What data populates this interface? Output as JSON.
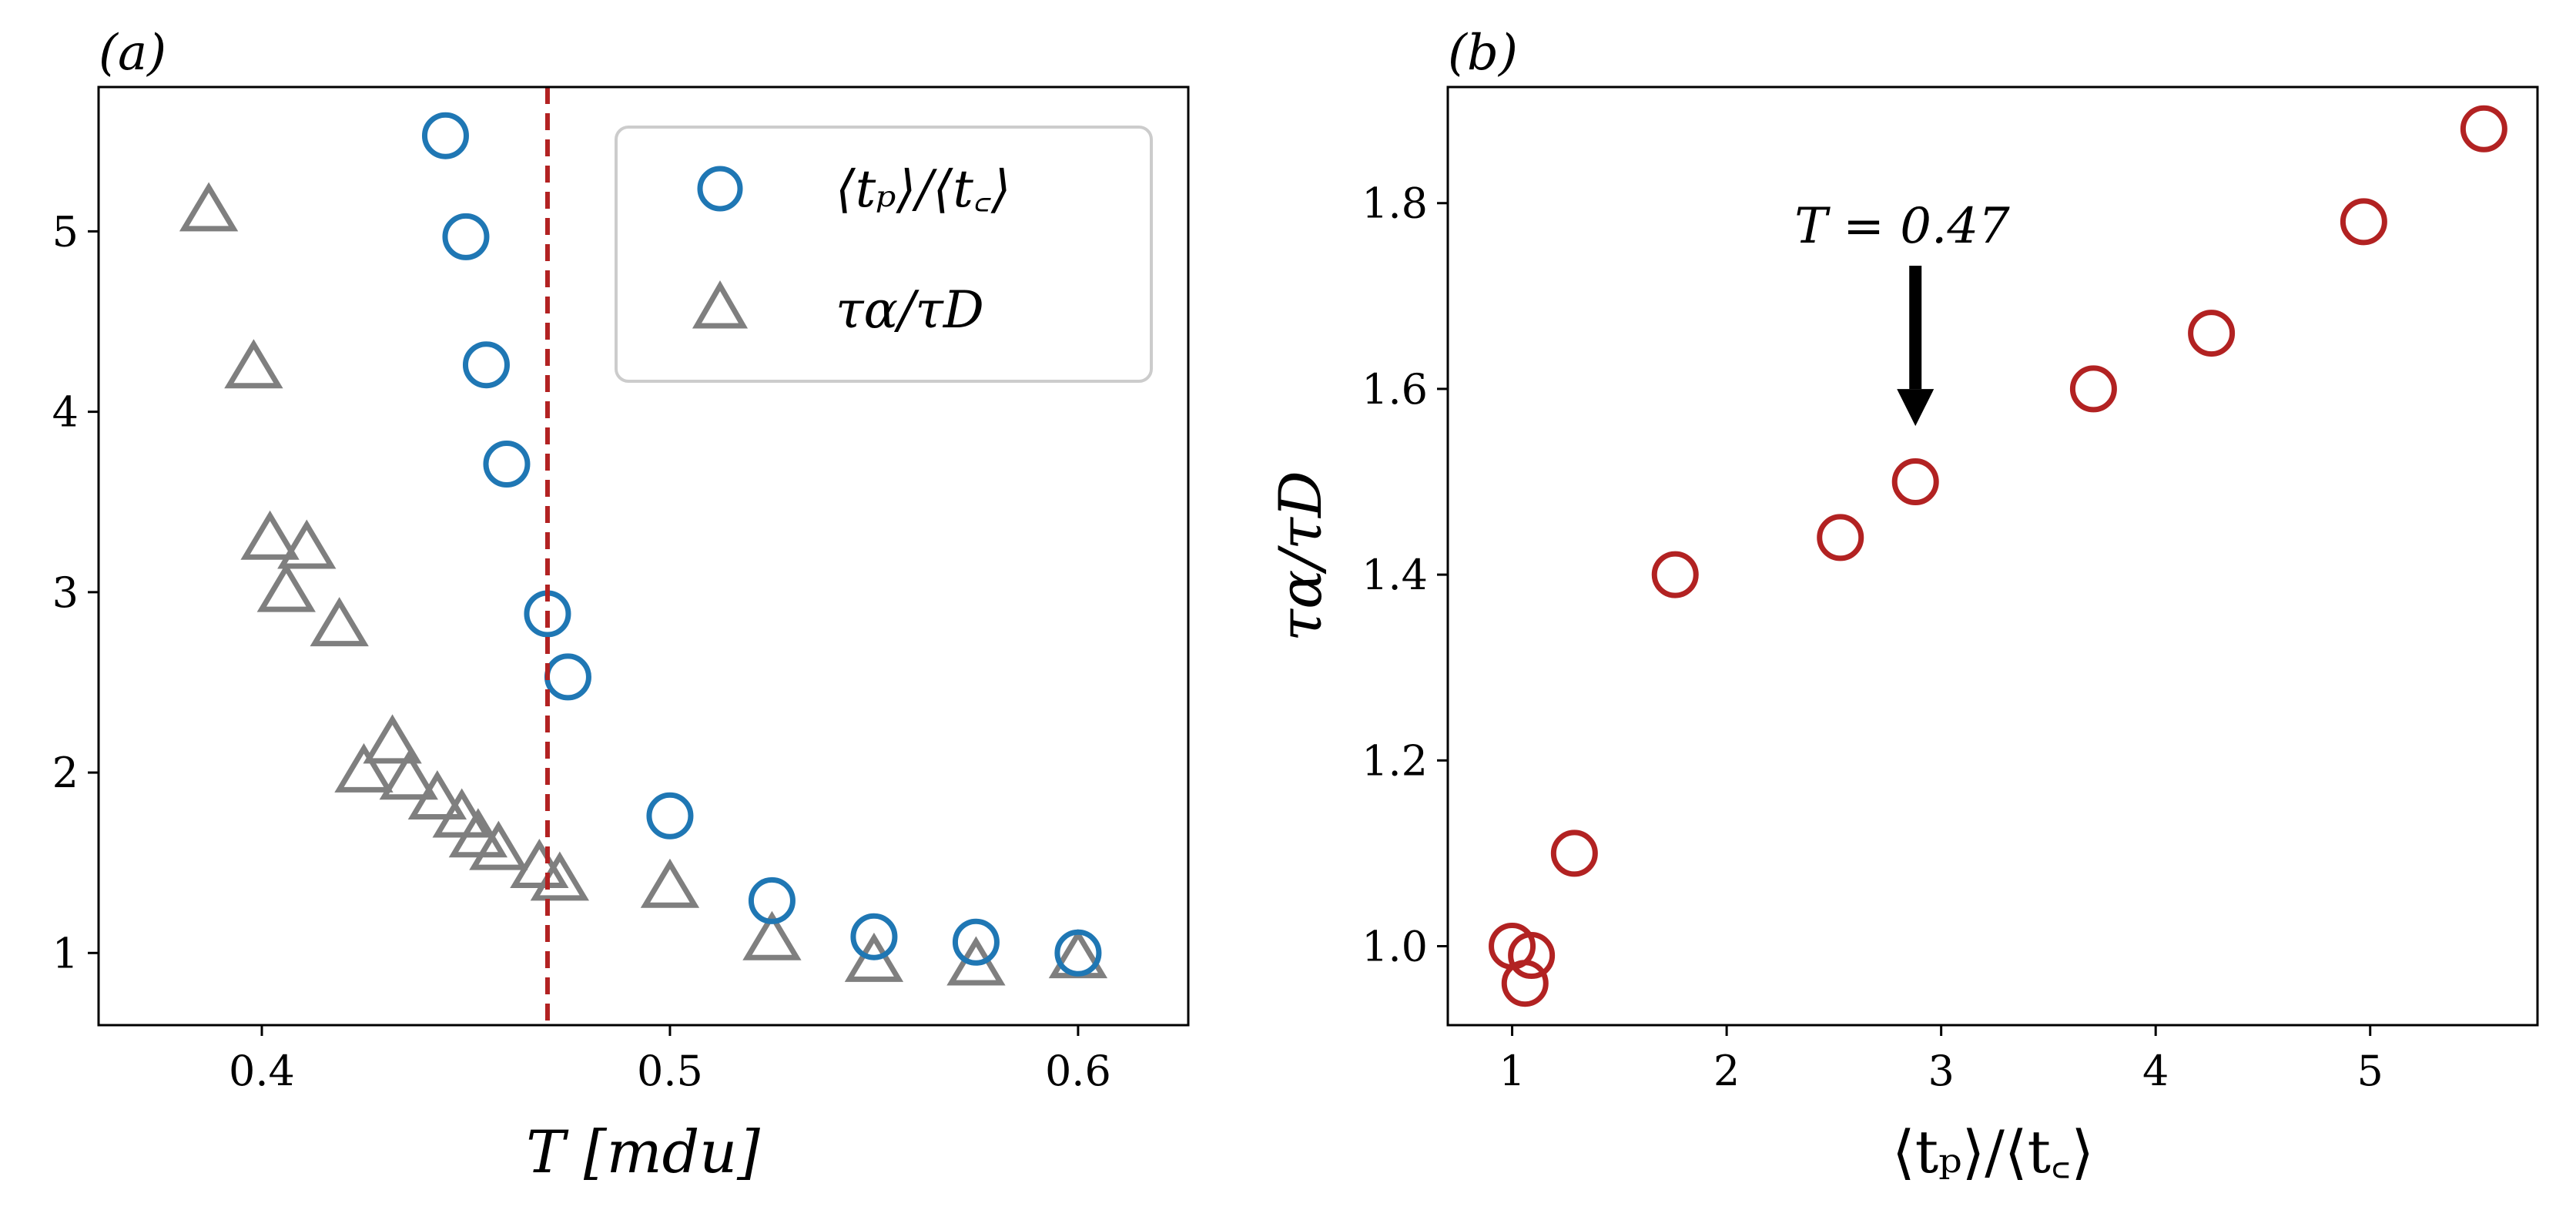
{
  "colors": {
    "blue": "#1f77b4",
    "gray": "#7f7f7f",
    "darkred": "#b22222",
    "vline": "#b22222",
    "axis": "#000000",
    "legend_border": "#cccccc"
  },
  "chart_data": [
    {
      "panel": "(a)",
      "type": "scatter",
      "xlabel": "T  [mdu]",
      "ylabel": "",
      "xlim": [
        0.36,
        0.627
      ],
      "ylim": [
        0.6,
        5.8
      ],
      "xticks": [
        0.4,
        0.5,
        0.6
      ],
      "xtick_labels": [
        "0.4",
        "0.5",
        "0.6"
      ],
      "yticks": [
        1,
        2,
        3,
        4,
        5
      ],
      "ytick_labels": [
        "1",
        "2",
        "3",
        "4",
        "5"
      ],
      "vline": {
        "x": 0.47,
        "style": "dashed"
      },
      "legend": {
        "position": "top-right"
      },
      "series": [
        {
          "name": "⟨t_p⟩/⟨t_c⟩",
          "label": "⟨tₚ⟩/⟨t꜀⟩",
          "marker": "circle",
          "color": "#1f77b4",
          "x": [
            0.445,
            0.45,
            0.455,
            0.46,
            0.47,
            0.475,
            0.5,
            0.525,
            0.55,
            0.575,
            0.6
          ],
          "y": [
            5.53,
            4.97,
            4.26,
            3.71,
            2.88,
            2.53,
            1.76,
            1.29,
            1.09,
            1.06,
            1.0
          ]
        },
        {
          "name": "τ_α/τ_D",
          "label": "τα/τD",
          "marker": "triangle",
          "color": "#7f7f7f",
          "x": [
            0.387,
            0.398,
            0.402,
            0.406,
            0.411,
            0.419,
            0.425,
            0.432,
            0.436,
            0.443,
            0.449,
            0.453,
            0.458,
            0.468,
            0.473,
            0.5,
            0.525,
            0.55,
            0.575,
            0.6
          ],
          "y": [
            5.12,
            4.25,
            3.3,
            3.01,
            3.25,
            2.82,
            2.01,
            2.17,
            1.97,
            1.86,
            1.76,
            1.65,
            1.58,
            1.48,
            1.41,
            1.37,
            1.08,
            0.96,
            0.94,
            0.98
          ]
        }
      ]
    },
    {
      "panel": "(b)",
      "type": "scatter",
      "xlabel": "⟨tₚ⟩/⟨t꜀⟩",
      "ylabel": "τα/τD",
      "xlim": [
        0.7,
        5.78
      ],
      "ylim": [
        0.915,
        1.925
      ],
      "xticks": [
        1,
        2,
        3,
        4,
        5
      ],
      "xtick_labels": [
        "1",
        "2",
        "3",
        "4",
        "5"
      ],
      "yticks": [
        1.0,
        1.2,
        1.4,
        1.6,
        1.8
      ],
      "ytick_labels": [
        "1.0",
        "1.2",
        "1.4",
        "1.6",
        "1.8"
      ],
      "annotation": {
        "text": "T = 0.47",
        "target_x": 2.88,
        "target_y": 1.56
      },
      "series": [
        {
          "name": "points",
          "marker": "circle",
          "color": "#b22222",
          "x": [
            1.0,
            1.06,
            1.09,
            1.29,
            1.76,
            2.53,
            2.88,
            3.71,
            4.26,
            4.97,
            5.53
          ],
          "y": [
            1.0,
            0.96,
            0.99,
            1.1,
            1.4,
            1.44,
            1.5,
            1.6,
            1.66,
            1.78,
            1.88
          ]
        }
      ]
    }
  ]
}
